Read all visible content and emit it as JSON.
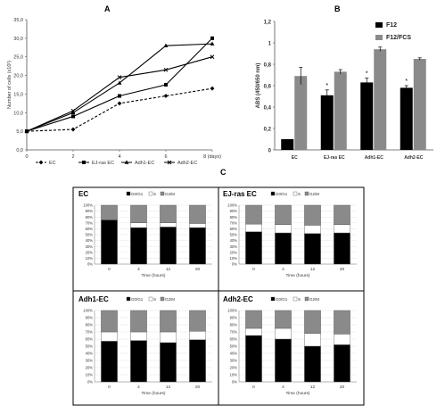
{
  "panels": {
    "A": "A",
    "B": "B",
    "C": "C"
  },
  "chart_data": [
    {
      "type": "line",
      "panel": "A",
      "ylabel": "Number of cells (x10²)",
      "xlabel": "",
      "x": [
        0,
        2,
        4,
        6,
        8
      ],
      "x_tick_labels": [
        "0",
        "2",
        "4",
        "6",
        "8 (days)"
      ],
      "ylim": [
        0,
        35
      ],
      "y_ticks": [
        0,
        5,
        10,
        15,
        20,
        25,
        30,
        35
      ],
      "y_tick_labels": [
        "0,0",
        "5,0",
        "10,0",
        "15,0",
        "20,0",
        "25,0",
        "30,0",
        "35,0"
      ],
      "series": [
        {
          "name": "EC",
          "values": [
            5,
            5.5,
            12.5,
            14.5,
            16.5
          ],
          "dash": true,
          "marker": "diamond"
        },
        {
          "name": "EJ-ras EC",
          "values": [
            5,
            9,
            14.5,
            17.5,
            30
          ],
          "dash": false,
          "marker": "square"
        },
        {
          "name": "Adh1-EC",
          "values": [
            5,
            10,
            18,
            28,
            28.5
          ],
          "dash": false,
          "marker": "triangle"
        },
        {
          "name": "Adh2-EC",
          "values": [
            5,
            10.5,
            19.5,
            21.5,
            25
          ],
          "dash": false,
          "marker": "x"
        }
      ],
      "legend": "bottom"
    },
    {
      "type": "bar",
      "panel": "B",
      "ylabel": "ABS (450/650 nm)",
      "categories": [
        "EC",
        "EJ-ras EC",
        "Adh1-EC",
        "Adh2-EC"
      ],
      "ylim": [
        0,
        1.2
      ],
      "y_ticks": [
        0,
        0.2,
        0.4,
        0.6,
        0.8,
        1,
        1.2
      ],
      "y_tick_labels": [
        "0",
        "0,2",
        "0,4",
        "0,6",
        "0,8",
        "1",
        "1,2"
      ],
      "series": [
        {
          "name": "F12",
          "values": [
            0.1,
            0.51,
            0.63,
            0.58
          ],
          "errors": [
            0,
            0.05,
            0.04,
            0.02
          ],
          "color": "#000000"
        },
        {
          "name": "F12/FCS",
          "values": [
            0.69,
            0.73,
            0.94,
            0.85
          ],
          "errors": [
            0.08,
            0.02,
            0.02,
            0.01
          ],
          "color": "#8a8a8a"
        }
      ],
      "significance": [
        "",
        "*",
        "*",
        "*"
      ],
      "legend": "top-right"
    },
    {
      "type": "bar",
      "stacked": true,
      "panel": "C",
      "title": "EC",
      "xlabel": "Time (hours)",
      "categories": [
        "0",
        "4",
        "12",
        "20"
      ],
      "series": [
        {
          "name": "G0/G1",
          "values": [
            75,
            62,
            63,
            62
          ]
        },
        {
          "name": "S",
          "values": [
            0,
            8,
            7,
            7
          ]
        },
        {
          "name": "G2/M",
          "values": [
            25,
            30,
            30,
            31
          ]
        }
      ],
      "legend_labels": [
        "G0/G1",
        "S",
        "G2/M"
      ]
    },
    {
      "type": "bar",
      "stacked": true,
      "panel": "C",
      "title": "EJ-ras EC",
      "xlabel": "Time (hours)",
      "categories": [
        "0",
        "4",
        "12",
        "20"
      ],
      "series": [
        {
          "name": "G0/G1",
          "values": [
            55,
            53,
            52,
            53
          ]
        },
        {
          "name": "S",
          "values": [
            13,
            14,
            14,
            14
          ]
        },
        {
          "name": "G2/M",
          "values": [
            32,
            33,
            34,
            33
          ]
        }
      ],
      "legend_labels": [
        "G0/G1",
        "S",
        "G2/M"
      ]
    },
    {
      "type": "bar",
      "stacked": true,
      "panel": "C",
      "title": "Adh1-EC",
      "xlabel": "Time (hours)",
      "categories": [
        "0",
        "4",
        "12",
        "20"
      ],
      "series": [
        {
          "name": "G0/G1",
          "values": [
            57,
            58,
            55,
            59
          ]
        },
        {
          "name": "S",
          "values": [
            13,
            12,
            15,
            12
          ]
        },
        {
          "name": "G2/M",
          "values": [
            30,
            30,
            30,
            29
          ]
        }
      ],
      "legend_labels": [
        "G0/G1",
        "S",
        "G2/M"
      ]
    },
    {
      "type": "bar",
      "stacked": true,
      "panel": "C",
      "title": "Adh2-EC",
      "xlabel": "Time (hours)",
      "categories": [
        "0",
        "4",
        "12",
        "20"
      ],
      "series": [
        {
          "name": "G0/G1",
          "values": [
            65,
            60,
            50,
            52
          ]
        },
        {
          "name": "S",
          "values": [
            10,
            15,
            18,
            15
          ]
        },
        {
          "name": "G2/M",
          "values": [
            25,
            25,
            32,
            33
          ]
        }
      ],
      "legend_labels": [
        "G0/G1",
        "S",
        "G2/M"
      ]
    }
  ],
  "colors": {
    "g0g1": "#000000",
    "s": "#ffffff",
    "g2m": "#8a8a8a",
    "grid": "#dddddd"
  }
}
